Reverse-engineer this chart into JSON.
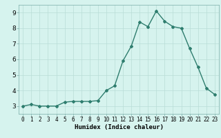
{
  "x": [
    0,
    1,
    2,
    3,
    4,
    5,
    6,
    7,
    8,
    9,
    10,
    11,
    12,
    13,
    14,
    15,
    16,
    17,
    18,
    19,
    20,
    21,
    22,
    23
  ],
  "y": [
    3.0,
    3.1,
    3.0,
    3.0,
    3.0,
    3.25,
    3.3,
    3.3,
    3.3,
    3.35,
    4.0,
    4.3,
    5.9,
    6.85,
    8.4,
    8.1,
    9.1,
    8.45,
    8.1,
    8.0,
    6.7,
    5.5,
    4.15,
    3.75
  ],
  "xlabel": "Humidex (Indice chaleur)",
  "xlim": [
    -0.5,
    23.5
  ],
  "ylim": [
    2.5,
    9.5
  ],
  "yticks": [
    3,
    4,
    5,
    6,
    7,
    8,
    9
  ],
  "xticks": [
    0,
    1,
    2,
    3,
    4,
    5,
    6,
    7,
    8,
    9,
    10,
    11,
    12,
    13,
    14,
    15,
    16,
    17,
    18,
    19,
    20,
    21,
    22,
    23
  ],
  "line_color": "#2e7d6e",
  "marker": "D",
  "marker_size": 2.0,
  "bg_color": "#d6f3ee",
  "grid_color": "#b8ddd7",
  "line_width": 1.0,
  "tick_fontsize": 5.5,
  "xlabel_fontsize": 6.5
}
